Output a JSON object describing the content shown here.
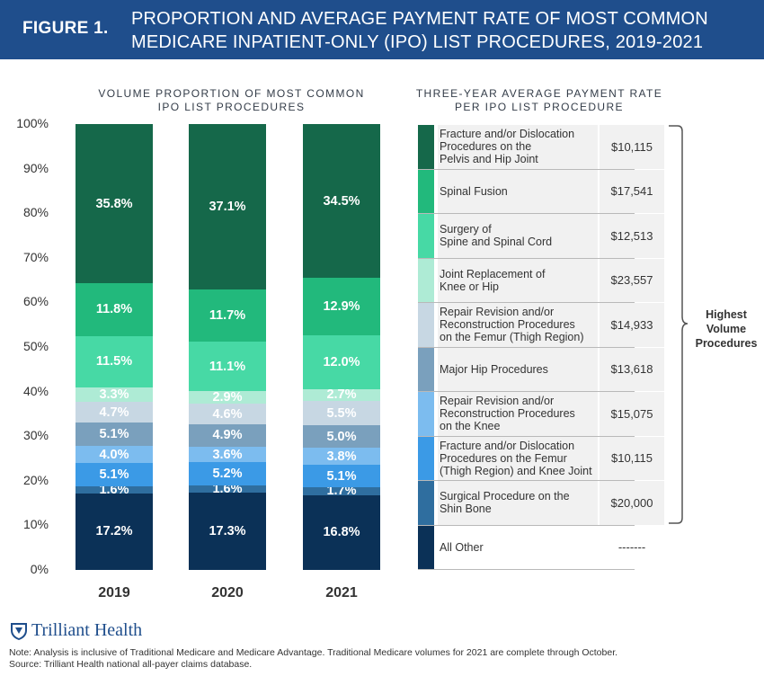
{
  "header": {
    "figure_label": "FIGURE 1.",
    "title_line1": "PROPORTION AND AVERAGE PAYMENT RATE OF MOST COMMON",
    "title_line2": "MEDICARE INPATIENT-ONLY (IPO) LIST PROCEDURES, 2019-2021"
  },
  "left_subtitle": {
    "line1": "VOLUME PROPORTION OF MOST COMMON",
    "line2": "IPO LIST PROCEDURES"
  },
  "right_subtitle": {
    "line1": "THREE-YEAR AVERAGE PAYMENT RATE",
    "line2": "PER  IPO LIST PROCEDURE"
  },
  "brace_label": {
    "line1": "Highest",
    "line2": "Volume",
    "line3": "Procedures"
  },
  "logo_text": "Trilliant Health",
  "note_line1": "Note: Analysis is inclusive of Traditional Medicare and Medicare Advantage. Traditional Medicare volumes for 2021 are complete through October.",
  "note_line2": "Source: Trilliant Health national all-payer claims database.",
  "chart_data": {
    "type": "bar",
    "stacked": true,
    "categories": [
      "2019",
      "2020",
      "2021"
    ],
    "yticks": [
      "0%",
      "10%",
      "20%",
      "30%",
      "40%",
      "50%",
      "60%",
      "70%",
      "80%",
      "90%",
      "100%"
    ],
    "ylim": [
      0,
      100
    ],
    "series": [
      {
        "name": "All Other",
        "color": "#0b3157",
        "label_color": "#ffffff",
        "values": [
          17.2,
          17.3,
          16.8
        ],
        "labels": [
          "17.2%",
          "17.3%",
          "16.8%"
        ],
        "rate": "-------"
      },
      {
        "name": "Surgical Procedure on the Shin Bone",
        "lines": [
          "Surgical Procedure on the",
          "Shin Bone"
        ],
        "color": "#2f6e9f",
        "label_color": "#ffffff",
        "values": [
          1.6,
          1.6,
          1.7
        ],
        "labels": [
          "1.6%",
          "1.6%",
          "1.7%"
        ],
        "rate": "$20,000"
      },
      {
        "name": "Fracture and/or Dislocation Procedures on the Femur (Thigh Region) and Knee Joint",
        "lines": [
          "Fracture and/or Dislocation",
          "Procedures on the Femur",
          "(Thigh Region) and Knee Joint"
        ],
        "color": "#3b9ae6",
        "label_color": "#ffffff",
        "values": [
          5.1,
          5.2,
          5.1
        ],
        "labels": [
          "5.1%",
          "5.2%",
          "5.1%"
        ],
        "rate": "$10,115"
      },
      {
        "name": "Repair Revision and/or Reconstruction Procedures on the Knee",
        "lines": [
          "Repair Revision and/or",
          "Reconstruction Procedures",
          "on the Knee"
        ],
        "color": "#7cbcef",
        "label_color": "#ffffff",
        "values": [
          4.0,
          3.6,
          3.8
        ],
        "labels": [
          "4.0%",
          "3.6%",
          "3.8%"
        ],
        "rate": "$15,075"
      },
      {
        "name": "Major Hip Procedures",
        "lines": [
          "Major Hip Procedures"
        ],
        "color": "#7aa0bd",
        "label_color": "#ffffff",
        "values": [
          5.1,
          4.9,
          5.0
        ],
        "labels": [
          "5.1%",
          "4.9%",
          "5.0%"
        ],
        "rate": "$13,618"
      },
      {
        "name": "Repair Revision and/or Reconstruction Procedures on the Femur (Thigh Region)",
        "lines": [
          "Repair Revision and/or",
          "Reconstruction Procedures",
          "on the Femur (Thigh Region)"
        ],
        "color": "#c7d7e3",
        "label_color": "#ffffff",
        "values": [
          4.7,
          4.6,
          5.5
        ],
        "labels": [
          "4.7%",
          "4.6%",
          "5.5%"
        ],
        "rate": "$14,933"
      },
      {
        "name": "Joint Replacement of Knee or Hip",
        "lines": [
          "Joint Replacement of",
          "Knee or Hip"
        ],
        "color": "#aeebd5",
        "label_color": "#ffffff",
        "values": [
          3.3,
          2.9,
          2.7
        ],
        "labels": [
          "3.3%",
          "2.9%",
          "2.7%"
        ],
        "rate": "$23,557"
      },
      {
        "name": "Surgery of Spine and Spinal Cord",
        "lines": [
          "Surgery of",
          "Spine and Spinal Cord"
        ],
        "color": "#47d9a5",
        "label_color": "#ffffff",
        "values": [
          11.5,
          11.1,
          12.0
        ],
        "labels": [
          "11.5%",
          "11.1%",
          "12.0%"
        ],
        "rate": "$12,513"
      },
      {
        "name": "Spinal Fusion",
        "lines": [
          "Spinal Fusion"
        ],
        "color": "#22b97c",
        "label_color": "#ffffff",
        "values": [
          11.8,
          11.7,
          12.9
        ],
        "labels": [
          "11.8%",
          "11.7%",
          "12.9%"
        ],
        "rate": "$17,541"
      },
      {
        "name": "Fracture and/or Dislocation Procedures on the Pelvis and Hip Joint",
        "lines": [
          "Fracture and/or Dislocation",
          "Procedures on the",
          "Pelvis and Hip Joint"
        ],
        "color": "#15684a",
        "label_color": "#ffffff",
        "values": [
          35.8,
          37.1,
          34.5
        ],
        "labels": [
          "35.8%",
          "37.1%",
          "34.5%"
        ],
        "rate": "$10,115"
      }
    ]
  }
}
